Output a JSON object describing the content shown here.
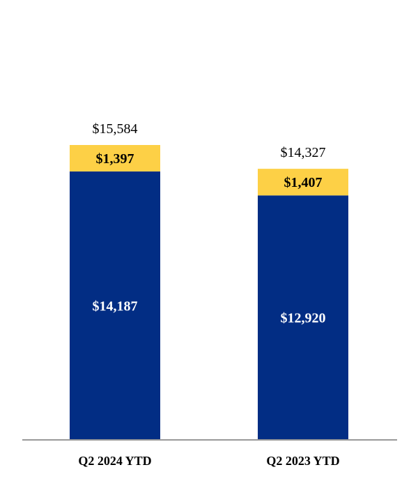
{
  "chart_data": {
    "type": "bar",
    "stacked": true,
    "categories": [
      "Q2 2024 YTD",
      "Q2 2023 YTD"
    ],
    "series": [
      {
        "values": [
          14187,
          12920
        ],
        "labels": [
          "$14,187",
          "$12,920"
        ],
        "color": "#022D84"
      },
      {
        "values": [
          1397,
          1407
        ],
        "labels": [
          "$1,397",
          "$1,407"
        ],
        "color": "#FDD046"
      }
    ],
    "totals": {
      "values": [
        15584,
        14327
      ],
      "labels": [
        "$15,584",
        "$14,327"
      ]
    },
    "title": "",
    "xlabel": "",
    "ylabel": "",
    "ylim": [
      0,
      20000
    ],
    "grid": false,
    "axis_color": "#999999"
  }
}
